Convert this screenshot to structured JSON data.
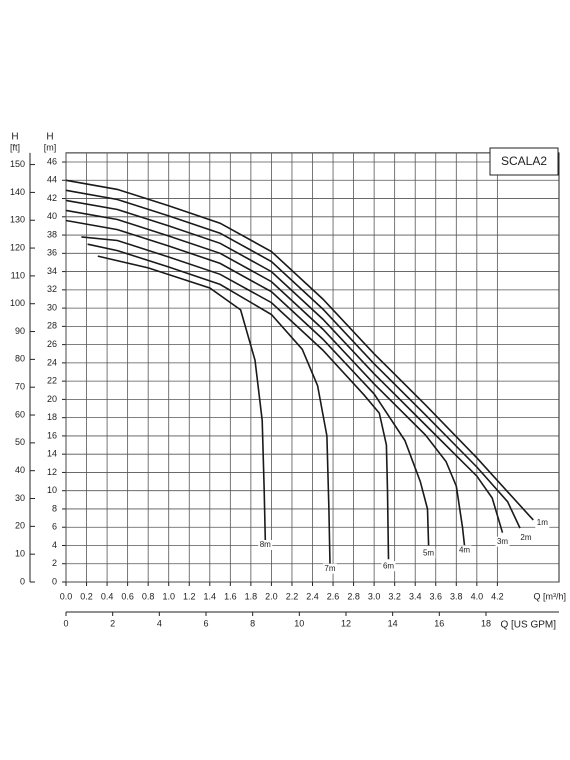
{
  "chart_data": {
    "type": "line",
    "title": "SCALA2",
    "y_label": "H",
    "y_unit": "[m]",
    "y2_label": "H",
    "y2_unit": "[ft]",
    "x_label": "Q [m³/h]",
    "x2_label": "Q [US GPM]",
    "xlim": [
      0,
      4.8
    ],
    "xticks": [
      {
        "value": 0,
        "label": "0.0"
      },
      0.2,
      0.4,
      0.6,
      0.8,
      {
        "value": 1,
        "label": "1.0"
      },
      1.2,
      1.4,
      1.6,
      1.8,
      {
        "value": 2,
        "label": "2.0"
      },
      2.2,
      2.4,
      2.6,
      2.8,
      {
        "value": 3,
        "label": "3.0"
      },
      3.2,
      3.4,
      3.6,
      3.8,
      {
        "value": 4,
        "label": "4.0"
      },
      4.2
    ],
    "x2lim": [
      0,
      21.13
    ],
    "x2ticks": [
      0,
      2,
      4,
      6,
      8,
      10,
      12,
      14,
      16,
      18
    ],
    "ylim": [
      0,
      47
    ],
    "yticks": [
      0,
      2,
      4,
      6,
      8,
      10,
      12,
      14,
      16,
      18,
      20,
      22,
      24,
      26,
      28,
      30,
      32,
      34,
      36,
      38,
      40,
      42,
      44,
      46
    ],
    "y2lim": [
      0,
      154.2
    ],
    "y2ticks": [
      0,
      10,
      20,
      30,
      40,
      50,
      60,
      70,
      80,
      90,
      100,
      110,
      120,
      130,
      140,
      150
    ],
    "grid": true,
    "color": "#1a1a1a",
    "series": [
      {
        "name": "1m",
        "x": [
          0,
          0.5,
          1,
          1.5,
          2,
          2.5,
          3,
          3.5,
          4,
          4.5,
          4.55
        ],
        "values": [
          44,
          43,
          41.2,
          39.3,
          36.2,
          31,
          25,
          19.4,
          13.6,
          7.4,
          6.8
        ]
      },
      {
        "name": "2m",
        "x": [
          0,
          0.5,
          1,
          1.5,
          2,
          2.5,
          3,
          3.5,
          4,
          4.3,
          4.42
        ],
        "values": [
          42.9,
          41.9,
          40.1,
          38.2,
          35.1,
          29.9,
          23.9,
          18.3,
          12.6,
          8.8,
          5.9
        ]
      },
      {
        "name": "3m",
        "x": [
          0,
          0.5,
          1,
          1.5,
          2,
          2.5,
          3,
          3.5,
          4,
          4.15,
          4.25
        ],
        "values": [
          41.8,
          40.8,
          39,
          37.1,
          34,
          28.8,
          22.8,
          17.2,
          11.6,
          9.2,
          5.4
        ]
      },
      {
        "name": "4m",
        "x": [
          0,
          0.5,
          1,
          1.5,
          2,
          2.5,
          3,
          3.5,
          3.7,
          3.8,
          3.86,
          3.88
        ],
        "values": [
          40.7,
          39.7,
          37.9,
          36,
          32.9,
          27.7,
          21.7,
          16.1,
          13.2,
          10.5,
          6,
          4
        ]
      },
      {
        "name": "5m",
        "x": [
          0,
          0.5,
          1,
          1.5,
          2,
          2.5,
          3,
          3.3,
          3.45,
          3.52,
          3.53
        ],
        "values": [
          39.6,
          38.6,
          36.8,
          34.9,
          31.8,
          26.6,
          20.6,
          15.5,
          11,
          8,
          4
        ]
      },
      {
        "name": "6m",
        "x": [
          0.15,
          0.5,
          1,
          1.5,
          2,
          2.5,
          2.9,
          3.05,
          3.12,
          3.13,
          3.14
        ],
        "values": [
          37.8,
          37.4,
          35.6,
          33.7,
          30.6,
          25.4,
          20.5,
          18.5,
          15,
          10,
          2.5
        ]
      },
      {
        "name": "7m",
        "x": [
          0.21,
          0.5,
          1,
          1.5,
          2,
          2.3,
          2.45,
          2.54,
          2.56,
          2.57
        ],
        "values": [
          37,
          36.3,
          34.5,
          32.6,
          29.3,
          25.5,
          21.5,
          16,
          8,
          1.9
        ]
      },
      {
        "name": "8m",
        "x": [
          0.31,
          0.8,
          1.4,
          1.7,
          1.84,
          1.91,
          1.93,
          1.94
        ],
        "values": [
          35.7,
          34.4,
          32.2,
          29.8,
          24.3,
          17.7,
          10,
          4.6
        ]
      }
    ]
  }
}
